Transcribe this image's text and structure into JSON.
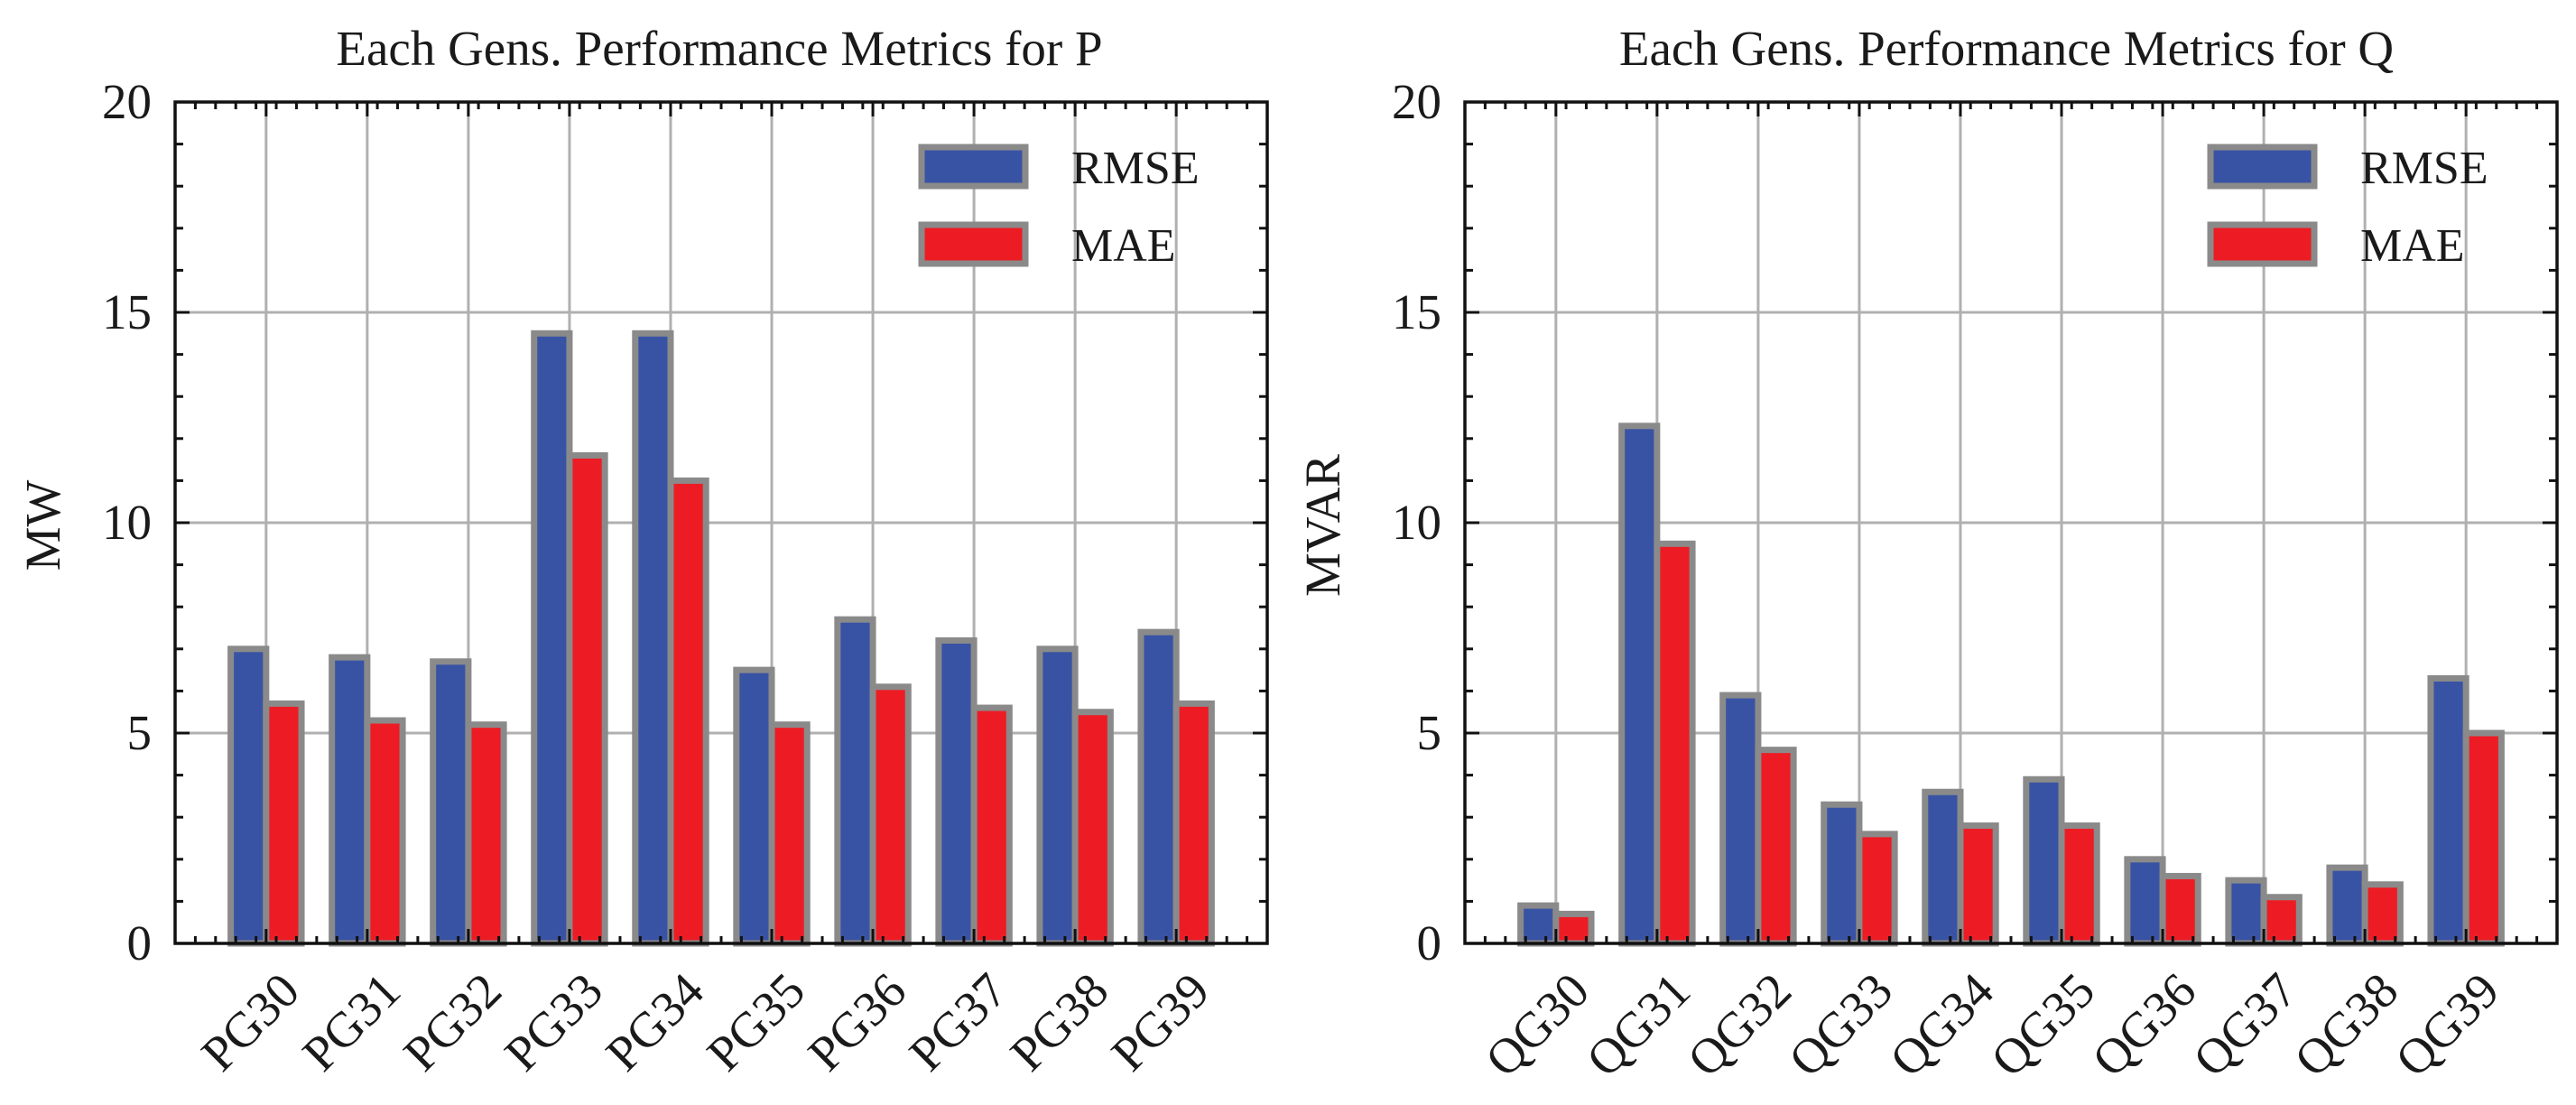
{
  "colors": {
    "rmse": "#3953a4",
    "mae": "#ed1c24",
    "bar_edge": "#8a8a8a",
    "grid": "#b0b0b0"
  },
  "chart_data": [
    {
      "type": "bar",
      "title": "Each Gens. Performance Metrics for P",
      "xlabel": "",
      "ylabel": "MW",
      "ylim": [
        0,
        20
      ],
      "yticks": [
        0,
        5,
        10,
        15,
        20
      ],
      "grid": true,
      "legend_position": "top-right",
      "categories": [
        "PG30",
        "PG31",
        "PG32",
        "PG33",
        "PG34",
        "PG35",
        "PG36",
        "PG37",
        "PG38",
        "PG39"
      ],
      "series": [
        {
          "name": "RMSE",
          "values": [
            7.0,
            6.8,
            6.7,
            14.5,
            14.5,
            6.5,
            7.7,
            7.2,
            7.0,
            7.4
          ]
        },
        {
          "name": "MAE",
          "values": [
            5.7,
            5.3,
            5.2,
            11.6,
            11.0,
            5.2,
            6.1,
            5.6,
            5.5,
            5.7
          ]
        }
      ]
    },
    {
      "type": "bar",
      "title": "Each Gens. Performance Metrics for Q",
      "xlabel": "",
      "ylabel": "MVAR",
      "ylim": [
        0,
        20
      ],
      "yticks": [
        0,
        5,
        10,
        15,
        20
      ],
      "grid": true,
      "legend_position": "top-right",
      "categories": [
        "QG30",
        "QG31",
        "QG32",
        "QG33",
        "QG34",
        "QG35",
        "QG36",
        "QG37",
        "QG38",
        "QG39"
      ],
      "series": [
        {
          "name": "RMSE",
          "values": [
            0.9,
            12.3,
            5.9,
            3.3,
            3.6,
            3.9,
            2.0,
            1.5,
            1.8,
            6.3
          ]
        },
        {
          "name": "MAE",
          "values": [
            0.7,
            9.5,
            4.6,
            2.6,
            2.8,
            2.8,
            1.6,
            1.1,
            1.4,
            5.0
          ]
        }
      ]
    }
  ]
}
